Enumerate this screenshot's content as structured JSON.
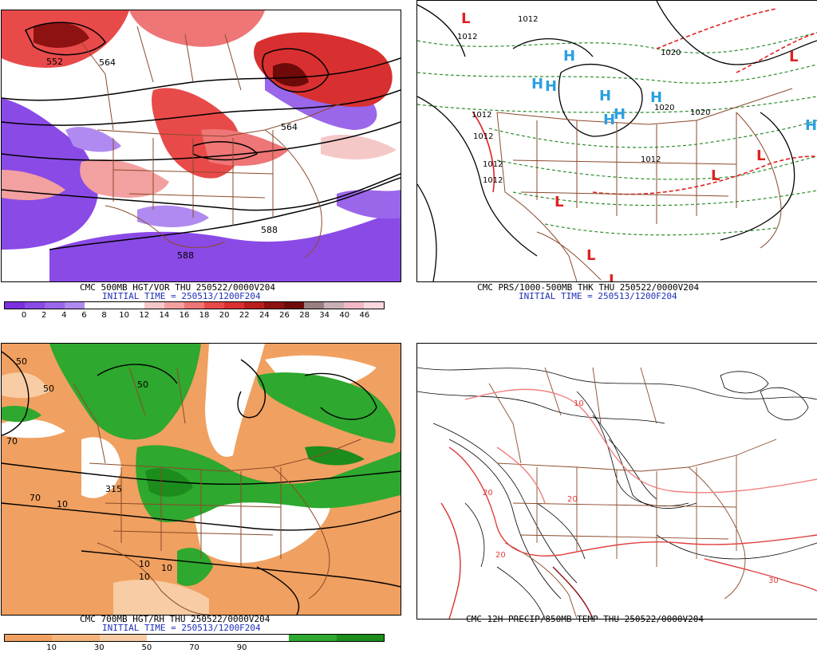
{
  "panels": {
    "vort": {
      "title": "CMC 500MB HGT/VOR THU 250522/0000V204",
      "init": "INITIAL TIME = 250513/1200F204",
      "contour_labels": [
        "552",
        "564",
        "564",
        "588",
        "588"
      ],
      "colorbar": {
        "labels": [
          "0",
          "2",
          "4",
          "6",
          "8",
          "10",
          "12",
          "14",
          "16",
          "18",
          "20",
          "22",
          "24",
          "26",
          "28",
          "34",
          "40",
          "46"
        ],
        "colors": [
          "#7b2fe0",
          "#8a4ae6",
          "#9a66ea",
          "#b08af0",
          "#ffffff",
          "#ffffff",
          "#ffffff",
          "#f5c8c8",
          "#f3a0a0",
          "#ee7676",
          "#e84a4a",
          "#d83030",
          "#b81e1e",
          "#8f1212",
          "#6e0a0a",
          "#9a7f80",
          "#c9b0b6",
          "#f2b8c6",
          "#fbd8e0"
        ]
      }
    },
    "pres": {
      "title": "CMC PRS/1000-500MB THK THU 250522/0000V204",
      "init": "INITIAL TIME = 250513/1200F204",
      "contour_labels": [
        "1012",
        "1012",
        "1012",
        "1012",
        "1012",
        "1012",
        "1012",
        "1020",
        "1020",
        "1020"
      ],
      "highs": [
        "H",
        "H",
        "H",
        "H",
        "H",
        "H",
        "H",
        "H"
      ],
      "lows": [
        "L",
        "L",
        "L",
        "L",
        "L",
        "L",
        "L"
      ]
    },
    "rh": {
      "title": "CMC 700MB HGT/RH THU 250522/0000V204",
      "init": "INITIAL TIME = 250513/1200F204",
      "contour_labels": [
        "50",
        "50",
        "50",
        "70",
        "70",
        "10",
        "10",
        "10",
        "10",
        "315"
      ],
      "colorbar": {
        "labels": [
          "10",
          "30",
          "50",
          "70",
          "90"
        ],
        "colors": [
          "#f0a060",
          "#f4b47c",
          "#f8cca4",
          "#ffffff",
          "#ffffff",
          "#ffffff",
          "#2ea82e",
          "#1c8c1c"
        ]
      }
    },
    "precip": {
      "title": "CMC 12H PRECIP/850MB TEMP THU 250522/0000V204",
      "contour_labels": [
        "10",
        "20",
        "20",
        "30",
        "20"
      ]
    }
  },
  "colors": {
    "vort_purple": "#8a4ae6",
    "vort_red": "#e84a4a",
    "rh_orange": "#f0a060",
    "rh_green": "#2ea82e",
    "border_brown": "#8b4a2a",
    "high_blue": "#2aa0e0",
    "low_red": "#e02020",
    "thickness_green": "#2e8a2e",
    "thickness_red": "#e02020"
  }
}
